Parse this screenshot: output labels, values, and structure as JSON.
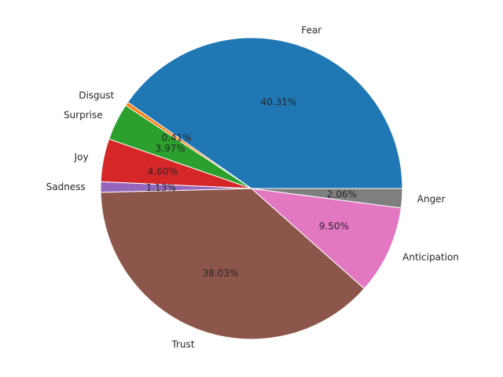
{
  "chart_data": {
    "type": "pie",
    "start_angle": 0,
    "direction": "counterclockwise",
    "slices": [
      {
        "label": "Fear",
        "value": 40.31,
        "pct_text": "40.31%",
        "color": "#1f77b4"
      },
      {
        "label": "Disgust",
        "value": 0.41,
        "pct_text": "0.41%",
        "color": "#ff7f0e"
      },
      {
        "label": "Surprise",
        "value": 3.97,
        "pct_text": "3.97%",
        "color": "#2ca02c"
      },
      {
        "label": "Joy",
        "value": 4.6,
        "pct_text": "4.60%",
        "color": "#d62728"
      },
      {
        "label": "Sadness",
        "value": 1.13,
        "pct_text": "1.13%",
        "color": "#9467bd"
      },
      {
        "label": "Trust",
        "value": 38.03,
        "pct_text": "38.03%",
        "color": "#8c564b"
      },
      {
        "label": "Anticipation",
        "value": 9.5,
        "pct_text": "9.50%",
        "color": "#e377c2"
      },
      {
        "label": "Anger",
        "value": 2.06,
        "pct_text": "2.06%",
        "color": "#7f7f7f"
      }
    ]
  }
}
